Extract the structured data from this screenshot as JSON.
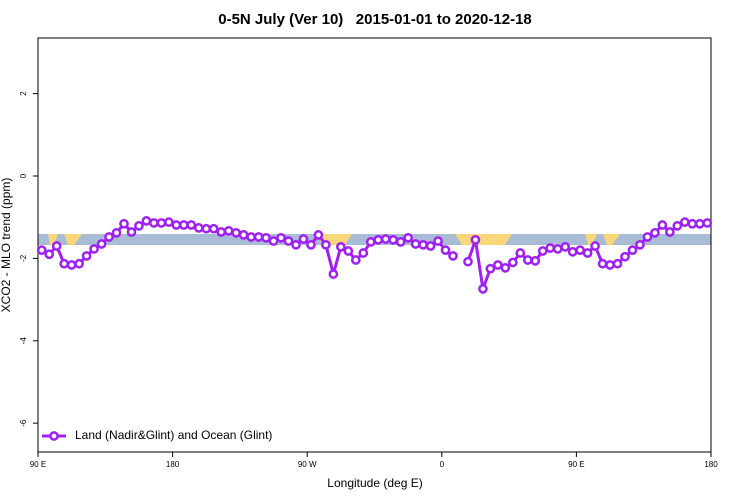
{
  "chart_data": {
    "type": "line",
    "title": "0-5N July (Ver 10)   2015-01-01 to 2020-12-18",
    "xlabel": "Longitude (deg E)",
    "ylabel": "XCO2 - MLO trend (ppm)",
    "x": [
      92.5,
      97.5,
      102.5,
      107.5,
      112.5,
      117.5,
      122.5,
      127.5,
      132.5,
      137.5,
      142.5,
      147.5,
      152.5,
      157.5,
      162.5,
      167.5,
      172.5,
      177.5,
      182.5,
      187.5,
      192.5,
      197.5,
      202.5,
      207.5,
      212.5,
      217.5,
      222.5,
      227.5,
      232.5,
      237.5,
      242.5,
      247.5,
      252.5,
      257.5,
      262.5,
      267.5,
      272.5,
      277.5,
      282.5,
      287.5,
      292.5,
      297.5,
      302.5,
      307.5,
      312.5,
      317.5,
      322.5,
      327.5,
      332.5,
      337.5,
      342.5,
      347.5,
      352.5,
      357.5,
      362.5,
      367.5,
      372.5,
      377.5,
      382.5,
      387.5,
      392.5,
      397.5,
      402.5,
      407.5,
      412.5,
      417.5,
      422.5,
      427.5,
      432.5,
      437.5,
      442.5,
      447.5,
      452.5,
      457.5,
      462.5,
      467.5,
      472.5,
      477.5,
      482.5,
      487.5,
      492.5,
      497.5,
      502.5,
      507.5,
      512.5,
      517.5,
      522.5,
      527.5,
      532.5,
      537.5
    ],
    "series": [
      {
        "name": "Land (Nadir&Glint) and Ocean (Glint)",
        "color": "#a020f0",
        "values": [
          -1.8,
          -1.9,
          -1.7,
          -2.13,
          -2.16,
          -2.13,
          -1.94,
          -1.77,
          -1.65,
          -1.48,
          -1.38,
          -1.16,
          -1.36,
          -1.21,
          -1.09,
          -1.14,
          -1.14,
          -1.12,
          -1.19,
          -1.19,
          -1.19,
          -1.26,
          -1.28,
          -1.28,
          -1.36,
          -1.33,
          -1.38,
          -1.43,
          -1.48,
          -1.48,
          -1.5,
          -1.58,
          -1.5,
          -1.58,
          -1.67,
          -1.53,
          -1.67,
          -1.43,
          -1.67,
          -2.38,
          -1.72,
          -1.82,
          -2.04,
          -1.87,
          -1.6,
          -1.55,
          -1.53,
          -1.55,
          -1.6,
          -1.5,
          -1.65,
          -1.67,
          -1.7,
          -1.58,
          -1.8,
          -1.94,
          null,
          -2.08,
          -1.55,
          -2.74,
          -2.25,
          -2.16,
          -2.23,
          -2.1,
          -1.87,
          -2.04,
          -2.06,
          -1.82,
          -1.75,
          -1.77,
          -1.72,
          -1.84,
          -1.8,
          -1.87,
          -1.7,
          -2.13,
          -2.16,
          -2.13,
          -1.96,
          -1.8,
          -1.67,
          -1.48,
          -1.38,
          -1.19,
          -1.36,
          -1.21,
          -1.12,
          -1.16,
          -1.16,
          -1.14
        ]
      }
    ],
    "xlim": [
      90,
      540
    ],
    "xticks": [
      {
        "value": 90,
        "label": "90 E"
      },
      180,
      {
        "value": 270,
        "label": "90 W"
      },
      {
        "value": 360,
        "label": "0"
      },
      {
        "value": 450,
        "label": "90 E"
      },
      {
        "value": 540,
        "label": "180"
      }
    ],
    "ylim": [
      -6.7,
      3.35
    ],
    "yticks": [
      2,
      0,
      -2,
      -4,
      -6
    ],
    "legend": "lower left"
  }
}
